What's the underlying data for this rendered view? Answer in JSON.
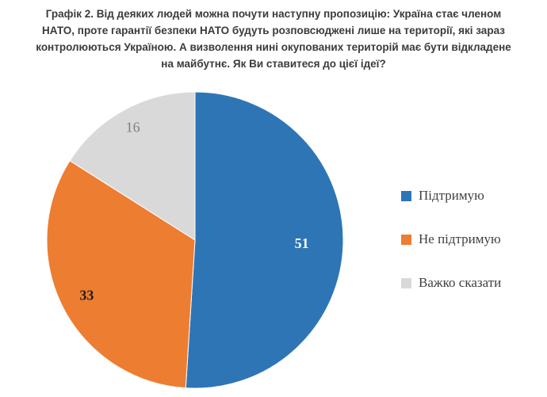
{
  "title": "Графік 2. Від деяких людей можна почути наступну пропозицію: Україна стає членом НАТО, проте гарантії безпеки НАТО будуть розповсюджені лише на території, які зараз контролюються Україною. А визволення нині окупованих територій має бути відкладене на майбутнє. Як Ви ставитеся до цієї ідеї?",
  "chart_data": {
    "type": "pie",
    "labels": [
      "Підтримую",
      "Не підтримую",
      "Важко сказати"
    ],
    "values": [
      51,
      33,
      16
    ],
    "colors": [
      "#2e75b6",
      "#ed7d31",
      "#d9d9d9"
    ],
    "data_label_colors": [
      "#ffffff",
      "#1f1f1f",
      "#7f7f7f"
    ],
    "legend_position": "right",
    "start_angle_deg": -90,
    "direction": "clockwise",
    "title": "Графік 2. Від деяких людей можна почути наступну пропозицію: Україна стає членом НАТО, проте гарантії безпеки НАТО будуть розповсюджені лише на території, які зараз контролюються Україною. А визволення нині окупованих територій має бути відкладене на майбутнє. Як Ви ставитеся до цієї ідеї?"
  }
}
